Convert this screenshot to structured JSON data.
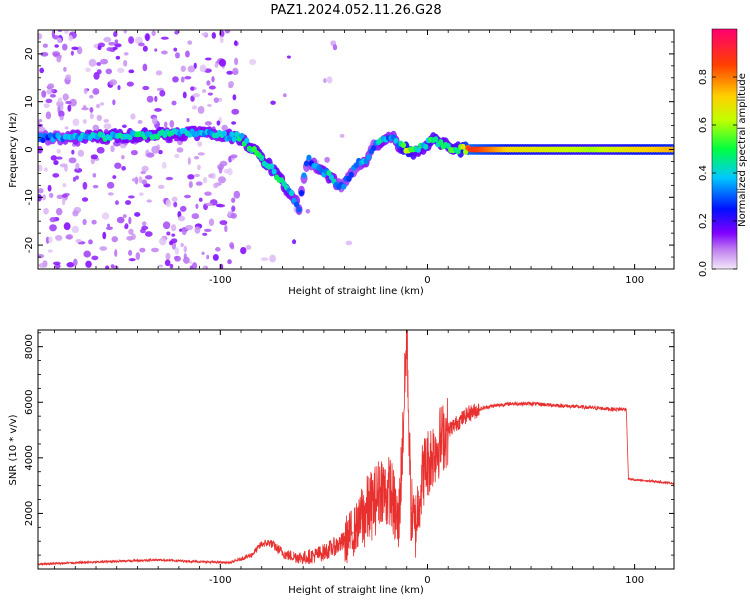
{
  "figure": {
    "title": "PAZ1.2024.052.11.26.G28"
  },
  "chart_data": [
    {
      "type": "heatmap",
      "xlabel": "Height of straight line (km)",
      "ylabel": "Frequency (Hz)",
      "xlim": [
        -188,
        119
      ],
      "ylim": [
        -25,
        25
      ],
      "xticks": [
        -100,
        0,
        100
      ],
      "yticks": [
        -20,
        -10,
        0,
        10,
        20
      ],
      "grid": false,
      "colorbar": {
        "label": "Normalized spectral amplitude",
        "range": [
          0.0,
          1.0
        ],
        "ticks": [
          0.0,
          0.2,
          0.4,
          0.6,
          0.8
        ],
        "colors": [
          "#f2e6f8",
          "#8a00ff",
          "#0000ff",
          "#00d8ff",
          "#00ff00",
          "#ffff00",
          "#ff7f00",
          "#ff0000",
          "#ff0066"
        ]
      },
      "ridge": {
        "name": "",
        "x": [
          -188,
          -170,
          -150,
          -130,
          -110,
          -100,
          -90,
          -82,
          -75,
          -68,
          -62,
          -58,
          -52,
          -46,
          -42,
          -38,
          -34,
          -30,
          -26,
          -22,
          -18,
          -14,
          -10,
          -6,
          -2,
          2,
          6,
          10,
          15,
          20,
          40,
          60,
          80,
          100,
          119
        ],
        "y": [
          2.5,
          2.5,
          2.8,
          3.2,
          3.5,
          3.0,
          2.5,
          -1.0,
          -4.0,
          -8.0,
          -12.0,
          -2.0,
          -4.0,
          -6.0,
          -8.0,
          -6.0,
          -3.0,
          -2.5,
          0.5,
          1.5,
          3.0,
          1.0,
          0.0,
          -0.5,
          0.5,
          2.0,
          1.5,
          0.5,
          0.0,
          0.0,
          0.0,
          0.0,
          0.0,
          0.0,
          0.0
        ],
        "amplitude": [
          0.3,
          0.4,
          0.45,
          0.45,
          0.42,
          0.4,
          0.45,
          0.5,
          0.5,
          0.45,
          0.35,
          0.3,
          0.4,
          0.45,
          0.3,
          0.35,
          0.3,
          0.4,
          0.3,
          0.45,
          0.35,
          0.4,
          0.75,
          0.5,
          0.45,
          0.55,
          0.5,
          0.5,
          0.55,
          0.9,
          0.7,
          0.65,
          0.6,
          0.7,
          0.75
        ]
      }
    },
    {
      "type": "line",
      "xlabel": "Height of straight line (km)",
      "ylabel": "SNR (10 * v/v)",
      "xlim": [
        -188,
        119
      ],
      "ylim": [
        0,
        8600
      ],
      "xticks": [
        -100,
        0,
        100
      ],
      "yticks": [
        2000,
        4000,
        6000,
        8000
      ],
      "grid": false,
      "series": [
        {
          "name": "",
          "color": "#e8302f",
          "x": [
            -188,
            -170,
            -150,
            -130,
            -110,
            -95,
            -85,
            -80,
            -76,
            -72,
            -68,
            -64,
            -60,
            -55,
            -50,
            -45,
            -40,
            -36,
            -32,
            -28,
            -25,
            -22,
            -20,
            -18,
            -16,
            -14,
            -12,
            -10,
            -8,
            -6,
            -4,
            -2,
            0,
            3,
            6,
            10,
            15,
            20,
            25,
            30,
            40,
            50,
            60,
            70,
            80,
            90,
            96,
            97,
            100,
            110,
            119
          ],
          "y": [
            180,
            220,
            280,
            330,
            260,
            230,
            500,
            900,
            950,
            700,
            500,
            450,
            400,
            480,
            600,
            800,
            1000,
            1300,
            1800,
            2200,
            2500,
            3000,
            2600,
            2900,
            2200,
            1500,
            4500,
            8500,
            2200,
            1400,
            2600,
            3500,
            3800,
            4200,
            4600,
            5000,
            5300,
            5600,
            5750,
            5850,
            5950,
            5950,
            5900,
            5850,
            5800,
            5750,
            5750,
            3250,
            3200,
            3150,
            3080
          ]
        }
      ]
    }
  ]
}
